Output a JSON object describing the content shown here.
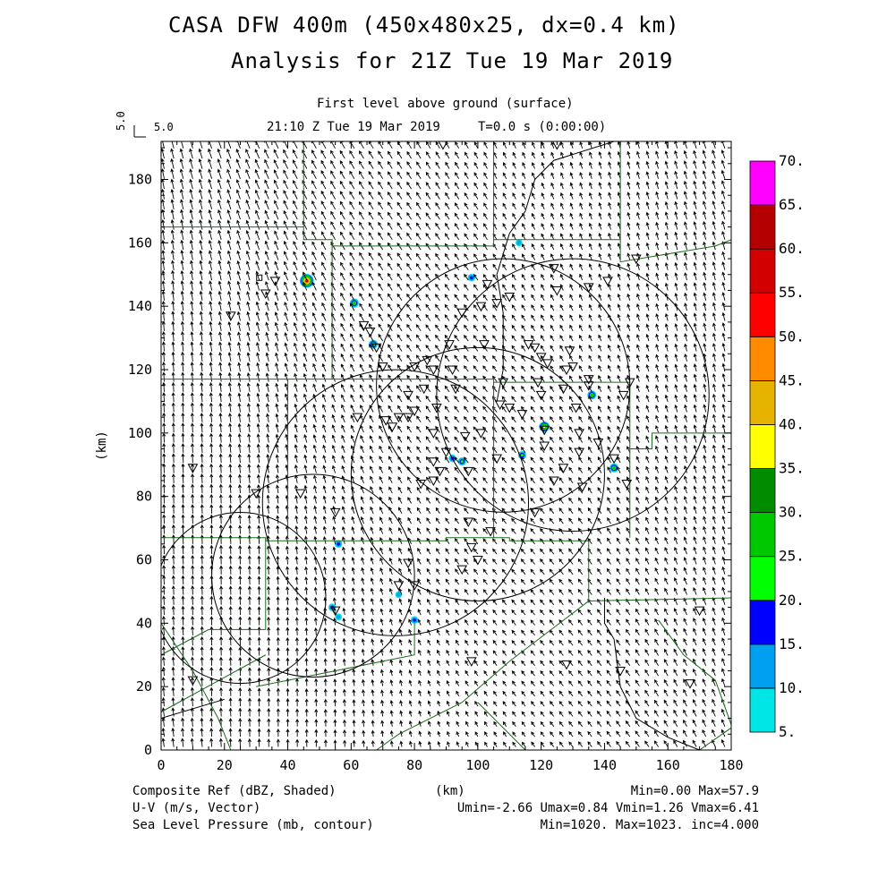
{
  "header": {
    "title_line1": "CASA DFW 400m (450x480x25, dx=0.4 km)",
    "title_line2": "Analysis for 21Z Tue 19 Mar 2019",
    "level": "First level above ground (surface)",
    "time": "21:10 Z Tue 19 Mar 2019     T=0.0 s (0:00:00)",
    "vector_scale_label": "5.0",
    "vector_scale_value": "5.0"
  },
  "footer": {
    "left_line1": "Composite Ref (dBZ, Shaded)",
    "left_line2": "U-V (m/s, Vector)",
    "left_line3": "Sea Level Pressure (mb, contour)",
    "xunit": "(km)",
    "right_line1": "Min=0.00 Max=57.9",
    "right_line2": "Umin=-2.66 Umax=0.84 Vmin=1.26 Vmax=6.41",
    "right_line3": "Min=1020. Max=1023. inc=4.000"
  },
  "colors": {
    "boundary": "#1a6b1a",
    "contour": "#000000",
    "vector": "#000000"
  },
  "chart_data": {
    "type": "heatmap",
    "xlabel": "(km)",
    "ylabel": "(km)",
    "xlim": [
      0,
      180
    ],
    "ylim": [
      0,
      192
    ],
    "x_ticks": [
      0,
      20,
      40,
      60,
      80,
      100,
      120,
      140,
      160,
      180
    ],
    "y_ticks": [
      0,
      20,
      40,
      60,
      80,
      100,
      120,
      140,
      160,
      180
    ],
    "colorbar": {
      "levels": [
        "5.",
        "10.",
        "15.",
        "20.",
        "25.",
        "30.",
        "35.",
        "40.",
        "45.",
        "50.",
        "55.",
        "60.",
        "65.",
        "70."
      ],
      "colors": [
        "#00e5e5",
        "#00a0f0",
        "#0000ff",
        "#00ff00",
        "#00c800",
        "#008c00",
        "#ffff00",
        "#e6b400",
        "#ff8c00",
        "#ff0000",
        "#d20000",
        "#b40000",
        "#ff00ff"
      ]
    },
    "reflectivity_cells": [
      {
        "x": 46,
        "y": 148,
        "dbz": 57.9
      },
      {
        "x": 61,
        "y": 141,
        "dbz": 25
      },
      {
        "x": 67,
        "y": 128,
        "dbz": 25
      },
      {
        "x": 98,
        "y": 149,
        "dbz": 15
      },
      {
        "x": 113,
        "y": 160,
        "dbz": 10
      },
      {
        "x": 121,
        "y": 102,
        "dbz": 35
      },
      {
        "x": 136,
        "y": 112,
        "dbz": 25
      },
      {
        "x": 143,
        "y": 89,
        "dbz": 25
      },
      {
        "x": 114,
        "y": 93,
        "dbz": 20
      },
      {
        "x": 95,
        "y": 91,
        "dbz": 20
      },
      {
        "x": 92,
        "y": 92,
        "dbz": 15
      },
      {
        "x": 56,
        "y": 65,
        "dbz": 15
      },
      {
        "x": 75,
        "y": 49,
        "dbz": 10
      },
      {
        "x": 80,
        "y": 41,
        "dbz": 15
      },
      {
        "x": 54,
        "y": 45,
        "dbz": 15
      },
      {
        "x": 56,
        "y": 42,
        "dbz": 10
      }
    ],
    "wind_field": {
      "u_range": [
        -2.66,
        0.84
      ],
      "v_range": [
        1.26,
        6.41
      ],
      "unit": "m/s"
    },
    "pressure_range": [
      1020,
      1023
    ],
    "pressure_inc": 4.0,
    "radar_rings_km": [
      {
        "x": 25,
        "y": 48,
        "r": 27
      },
      {
        "x": 48,
        "y": 55,
        "r": 32
      },
      {
        "x": 74,
        "y": 78,
        "r": 42
      },
      {
        "x": 100,
        "y": 87,
        "r": 40
      },
      {
        "x": 108,
        "y": 115,
        "r": 40
      },
      {
        "x": 130,
        "y": 112,
        "r": 43
      }
    ],
    "station_markers": [
      [
        10,
        89
      ],
      [
        10,
        22
      ],
      [
        22,
        137
      ],
      [
        30,
        81
      ],
      [
        33,
        144
      ],
      [
        36,
        148
      ],
      [
        44,
        81
      ],
      [
        55,
        75
      ],
      [
        55,
        44
      ],
      [
        62,
        105
      ],
      [
        64,
        134
      ],
      [
        66,
        132
      ],
      [
        68,
        127
      ],
      [
        70,
        121
      ],
      [
        71,
        104
      ],
      [
        73,
        102
      ],
      [
        75,
        105
      ],
      [
        78,
        105
      ],
      [
        78,
        112
      ],
      [
        80,
        107
      ],
      [
        80,
        121
      ],
      [
        83,
        114
      ],
      [
        84,
        123
      ],
      [
        86,
        120
      ],
      [
        87,
        108
      ],
      [
        86,
        100
      ],
      [
        86,
        91
      ],
      [
        86,
        85
      ],
      [
        88,
        88
      ],
      [
        90,
        94
      ],
      [
        91,
        128
      ],
      [
        92,
        120
      ],
      [
        93,
        114
      ],
      [
        95,
        138
      ],
      [
        96,
        99
      ],
      [
        97,
        88
      ],
      [
        97,
        72
      ],
      [
        98,
        64
      ],
      [
        101,
        100
      ],
      [
        101,
        140
      ],
      [
        102,
        128
      ],
      [
        103,
        147
      ],
      [
        106,
        141
      ],
      [
        107,
        109
      ],
      [
        108,
        116
      ],
      [
        110,
        143
      ],
      [
        114,
        106
      ],
      [
        116,
        128
      ],
      [
        118,
        127
      ],
      [
        119,
        116
      ],
      [
        120,
        124
      ],
      [
        120,
        112
      ],
      [
        121,
        96
      ],
      [
        121,
        101
      ],
      [
        122,
        122
      ],
      [
        124,
        152
      ],
      [
        125,
        145
      ],
      [
        127,
        114
      ],
      [
        128,
        120
      ],
      [
        129,
        126
      ],
      [
        130,
        121
      ],
      [
        131,
        108
      ],
      [
        132,
        100
      ],
      [
        132,
        94
      ],
      [
        133,
        83
      ],
      [
        135,
        117
      ],
      [
        135,
        146
      ],
      [
        138,
        97
      ],
      [
        141,
        148
      ],
      [
        143,
        92
      ],
      [
        146,
        112
      ],
      [
        147,
        84
      ],
      [
        148,
        116
      ],
      [
        150,
        155
      ],
      [
        110,
        108
      ],
      [
        95,
        57
      ],
      [
        98,
        28
      ],
      [
        118,
        75
      ],
      [
        128,
        27
      ],
      [
        145,
        25
      ],
      [
        167,
        21
      ],
      [
        170,
        44
      ],
      [
        89,
        191
      ],
      [
        125,
        191
      ],
      [
        135,
        115
      ],
      [
        124,
        85
      ],
      [
        106,
        92
      ],
      [
        127,
        89
      ],
      [
        82,
        84
      ],
      [
        104,
        69
      ],
      [
        78,
        59
      ],
      [
        75,
        52
      ],
      [
        80,
        52
      ],
      [
        100,
        60
      ]
    ],
    "surface_station": {
      "x": 31,
      "y": 149
    }
  }
}
